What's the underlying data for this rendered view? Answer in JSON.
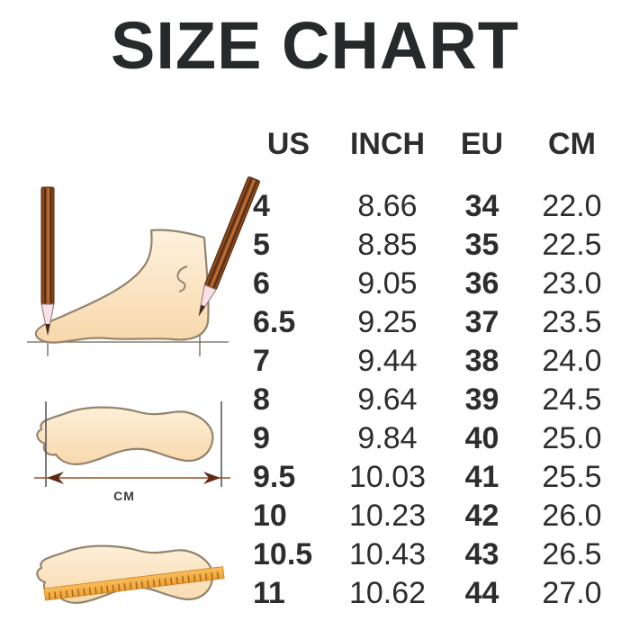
{
  "title": "SIZE CHART",
  "chart_data": {
    "type": "table",
    "title": "SIZE CHART",
    "columns": [
      "US",
      "INCH",
      "EU",
      "CM"
    ],
    "rows": [
      [
        "4",
        "8.66",
        "34",
        "22.0"
      ],
      [
        "5",
        "8.85",
        "35",
        "22.5"
      ],
      [
        "6",
        "9.05",
        "36",
        "23.0"
      ],
      [
        "6.5",
        "9.25",
        "37",
        "23.5"
      ],
      [
        "7",
        "9.44",
        "38",
        "24.0"
      ],
      [
        "8",
        "9.64",
        "39",
        "24.5"
      ],
      [
        "9",
        "9.84",
        "40",
        "25.0"
      ],
      [
        "9.5",
        "10.03",
        "41",
        "25.5"
      ],
      [
        "10",
        "10.23",
        "42",
        "26.0"
      ],
      [
        "10.5",
        "10.43",
        "43",
        "26.5"
      ],
      [
        "11",
        "10.62",
        "44",
        "27.0"
      ]
    ]
  },
  "illustrations": {
    "measure_unit_label": "CM",
    "icons": [
      "pencil-icon",
      "foot-side-icon",
      "footprint-icon",
      "measure-arrow-icon",
      "ruler-icon"
    ]
  },
  "colors": {
    "text": "#2b2d2e",
    "foot_fill": "#fbe7c8",
    "foot_outline": "#94846f",
    "pencil_brown": "#8a4a20",
    "ruler_orange": "#f5b04a",
    "arrow_brown": "#5f2a10"
  }
}
